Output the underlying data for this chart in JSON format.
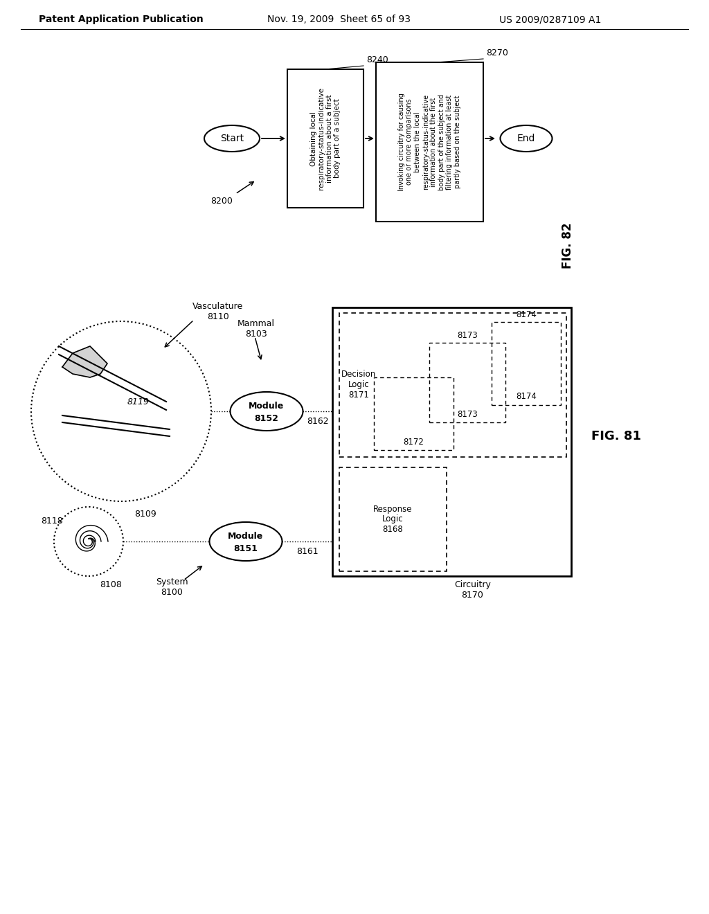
{
  "bg_color": "#ffffff",
  "header_left": "Patent Application Publication",
  "header_mid": "Nov. 19, 2009  Sheet 65 of 93",
  "header_right": "US 2009/0287109 A1",
  "fig82": {
    "label": "FIG. 82",
    "system_label": "8200",
    "start_text": "Start",
    "end_text": "End",
    "box1_label": "8240",
    "box1_text": "Obtaining local\nrespiratory-status-indicative\ninformation about a first\nbody part of a subject",
    "box2_label": "8270",
    "box2_text": "Invoking circuitry for causing\none or more comparisons\nbetween the local\nrespiratory-status-indicative\ninformation about the first\nbody part of the subject and\nfiltering information at least\npartly based on the subject"
  },
  "fig81": {
    "label": "FIG. 81",
    "system_label": "System\n8100",
    "vasculature_label": "Vasculature\n8110",
    "mammal_label": "Mammal\n8103",
    "module1_text": "Module\n8151",
    "module2_text": "Module\n8152",
    "conn1_label": "8161",
    "conn2_label": "8162",
    "circle1_label": "8109",
    "circle2_label": "8118",
    "vessel_label": "8119",
    "small_label": "8108",
    "circuitry_label": "Circuitry\n8170",
    "response_box_text": "Response\nLogic\n8168",
    "decision_box_text": "Decision\nLogic\n8171",
    "sub_box1": "8172",
    "sub_box2": "8173",
    "sub_box3": "8174"
  }
}
